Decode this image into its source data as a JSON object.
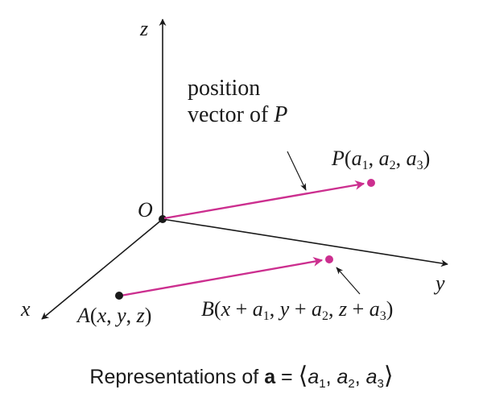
{
  "diagram": {
    "axes": {
      "z_label": "z",
      "y_label": "y",
      "x_label": "x",
      "origin_label": "O"
    },
    "annotation": {
      "line1": "position",
      "line2_prefix": "vector of ",
      "line2_var": "P"
    },
    "point_P": {
      "name": "P",
      "open": "(",
      "a1": "a",
      "s1": "1",
      "sep1": ", ",
      "a2": "a",
      "s2": "2",
      "sep2": ", ",
      "a3": "a",
      "s3": "3",
      "close": ")"
    },
    "point_A": {
      "name": "A",
      "open": "(",
      "x": "x",
      "sep1": ", ",
      "y": "y",
      "sep2": ", ",
      "z": "z",
      "close": ")"
    },
    "point_B": {
      "name": "B",
      "open": "(",
      "x": "x",
      "plus1": " + ",
      "a1": "a",
      "s1": "1",
      "sep1": ", ",
      "y": "y",
      "plus2": " + ",
      "a2": "a",
      "s2": "2",
      "sep2": ", ",
      "z": "z",
      "plus3": " + ",
      "a3": "a",
      "s3": "3",
      "close": ")"
    },
    "caption": {
      "prefix": "Representations of ",
      "bold_a": "a",
      "equals": " = ",
      "lang": "⟨",
      "a1": "a",
      "s1": "1",
      "sep1": ", ",
      "a2": "a",
      "s2": "2",
      "sep2": ", ",
      "a3": "a",
      "s3": "3",
      "rang": "⟩"
    },
    "colors": {
      "axis": "#1a1a1a",
      "vector": "#cc2f8f"
    }
  }
}
